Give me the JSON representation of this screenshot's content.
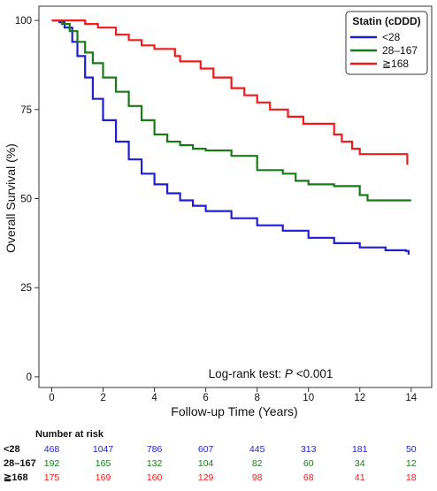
{
  "chart_data": {
    "type": "line",
    "title": "",
    "xlabel": "Follow-up Time (Years)",
    "ylabel": "Overall Survival (%)",
    "xlim": [
      -0.5,
      14.8
    ],
    "ylim": [
      -3,
      104
    ],
    "x_ticks": [
      0,
      2,
      4,
      6,
      8,
      10,
      12,
      14
    ],
    "y_ticks": [
      0,
      25,
      50,
      75,
      100
    ],
    "grid": false,
    "legend": {
      "title": "Statin (cDDD)",
      "placement": "top-right"
    },
    "annotation": {
      "prefix": "Log-rank test: ",
      "italic": "P",
      "suffix": " <0.001"
    },
    "series": [
      {
        "name": "<28",
        "color": "#1f1fcf",
        "points": [
          [
            0,
            100
          ],
          [
            0.3,
            99.5
          ],
          [
            0.5,
            98
          ],
          [
            0.8,
            94
          ],
          [
            1,
            90
          ],
          [
            1.3,
            84
          ],
          [
            1.6,
            78
          ],
          [
            2,
            72
          ],
          [
            2.5,
            66
          ],
          [
            3,
            61
          ],
          [
            3.5,
            57
          ],
          [
            4,
            54
          ],
          [
            4.5,
            51.5
          ],
          [
            5,
            49.5
          ],
          [
            5.5,
            48
          ],
          [
            6,
            46.5
          ],
          [
            7,
            44.5
          ],
          [
            8,
            42.5
          ],
          [
            9,
            41
          ],
          [
            10,
            39
          ],
          [
            11,
            37.5
          ],
          [
            12,
            36.3
          ],
          [
            13,
            35.5
          ],
          [
            13.8,
            35.3
          ],
          [
            13.9,
            34.3
          ]
        ]
      },
      {
        "name": "28–167",
        "color": "#1a7a1a",
        "points": [
          [
            0,
            100
          ],
          [
            0.4,
            99
          ],
          [
            0.7,
            97
          ],
          [
            1,
            94
          ],
          [
            1.3,
            91
          ],
          [
            1.6,
            88
          ],
          [
            2,
            84
          ],
          [
            2.5,
            80
          ],
          [
            3,
            76
          ],
          [
            3.5,
            72
          ],
          [
            4,
            68
          ],
          [
            4.5,
            66
          ],
          [
            5,
            65
          ],
          [
            5.5,
            64
          ],
          [
            6,
            63.5
          ],
          [
            7,
            62
          ],
          [
            8,
            58
          ],
          [
            9,
            57
          ],
          [
            9.5,
            55
          ],
          [
            10,
            54
          ],
          [
            11,
            53.5
          ],
          [
            12,
            51
          ],
          [
            12.3,
            49.5
          ],
          [
            13,
            49.5
          ],
          [
            14,
            49.5
          ]
        ]
      },
      {
        "name": "≧168",
        "color": "#ee1c1c",
        "points": [
          [
            0,
            100
          ],
          [
            0.8,
            100
          ],
          [
            1.3,
            99
          ],
          [
            1.8,
            98
          ],
          [
            2.5,
            96
          ],
          [
            3,
            94.5
          ],
          [
            3.5,
            93
          ],
          [
            4,
            92
          ],
          [
            4.8,
            90
          ],
          [
            5,
            88.5
          ],
          [
            5.8,
            86.5
          ],
          [
            6.3,
            84
          ],
          [
            7,
            81
          ],
          [
            7.5,
            79
          ],
          [
            8,
            77
          ],
          [
            8.5,
            75
          ],
          [
            9.2,
            73
          ],
          [
            9.8,
            71
          ],
          [
            10.5,
            71
          ],
          [
            11,
            68
          ],
          [
            11.3,
            66
          ],
          [
            11.7,
            64
          ],
          [
            12,
            62.5
          ],
          [
            13,
            62.5
          ],
          [
            13.8,
            62.5
          ],
          [
            13.85,
            59.5
          ]
        ]
      }
    ]
  },
  "risk_table": {
    "title": "Number at risk",
    "rows": [
      {
        "label": "<28",
        "color": "#1f1fcf",
        "values": [
          "468",
          "1047",
          "786",
          "607",
          "445",
          "313",
          "181",
          "50"
        ]
      },
      {
        "label": "28–167",
        "color": "#1a7a1a",
        "values": [
          "192",
          "165",
          "132",
          "104",
          "82",
          "60",
          "34",
          "12"
        ]
      },
      {
        "label": "≧168",
        "color": "#ee1c1c",
        "values": [
          "175",
          "169",
          "160",
          "129",
          "98",
          "68",
          "41",
          "18"
        ]
      }
    ]
  }
}
